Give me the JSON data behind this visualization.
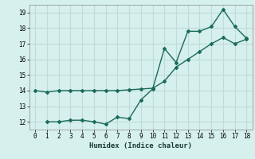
{
  "xlabel": "Humidex (Indice chaleur)",
  "bg_color": "#d6f0ee",
  "grid_color": "#c0dbd8",
  "line_color": "#1a6b5a",
  "ylim": [
    11.5,
    19.5
  ],
  "xlim": [
    -0.5,
    18.5
  ],
  "yticks": [
    12,
    13,
    14,
    15,
    16,
    17,
    18,
    19
  ],
  "xticks": [
    0,
    1,
    2,
    3,
    4,
    5,
    6,
    7,
    8,
    9,
    10,
    11,
    12,
    13,
    14,
    15,
    16,
    17,
    18
  ],
  "line1_x": [
    0,
    1,
    2,
    3,
    4,
    5,
    6,
    7,
    8,
    9,
    10,
    11,
    12,
    13,
    14,
    15,
    16,
    17,
    18
  ],
  "line1_y": [
    14.0,
    13.9,
    14.0,
    14.0,
    14.0,
    14.0,
    14.0,
    14.0,
    14.05,
    14.1,
    14.15,
    14.6,
    15.5,
    16.0,
    16.5,
    17.0,
    17.4,
    17.0,
    17.3
  ],
  "line2_x": [
    1,
    2,
    3,
    4,
    5,
    6,
    7,
    8,
    9,
    10,
    11,
    12,
    13,
    14,
    15,
    16,
    17,
    18
  ],
  "line2_y": [
    12.0,
    12.0,
    12.1,
    12.1,
    12.0,
    11.85,
    12.3,
    12.2,
    13.4,
    14.1,
    16.7,
    15.8,
    17.8,
    17.8,
    18.1,
    19.2,
    18.1,
    17.35
  ]
}
